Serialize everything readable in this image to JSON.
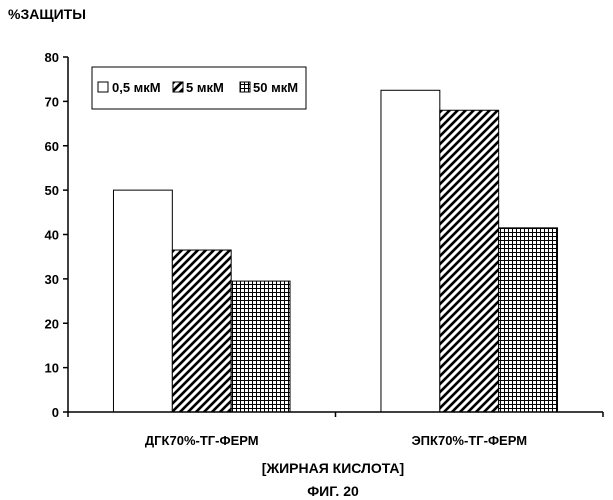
{
  "chart_data": {
    "type": "bar",
    "title": "%ЗАЩИТЫ",
    "xlabel": "[ЖИРНАЯ КИСЛОТА]",
    "ylabel": "",
    "ylim": [
      0,
      80
    ],
    "y_ticks": [
      "0",
      "10",
      "20",
      "30",
      "40",
      "50",
      "60",
      "70",
      "80"
    ],
    "categories": [
      "ДГК70%-ТГ-ФЕРМ",
      "ЭПК70%-ТГ-ФЕРМ"
    ],
    "series": [
      {
        "name": "0,5 мкМ",
        "values": [
          50,
          72.5
        ],
        "fill": "white"
      },
      {
        "name": "5 мкМ",
        "values": [
          36.5,
          68
        ],
        "fill": "diagonal-hatch"
      },
      {
        "name": "50 мкМ",
        "values": [
          29.5,
          41.5
        ],
        "fill": "grid-hatch"
      }
    ],
    "legend_position": "top-left",
    "grid": false
  },
  "caption": "ФИГ. 20"
}
